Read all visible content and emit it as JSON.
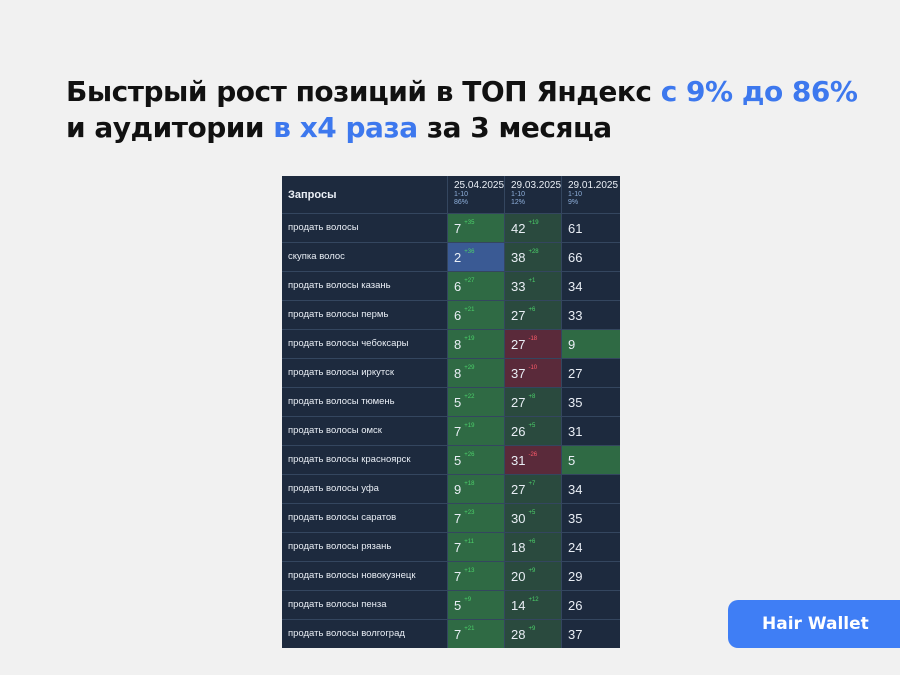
{
  "header": {
    "title": {
      "line1": "Быстрый рост позиций в ТОП Яндекс",
      "line1_accent": "с 9% до 86%",
      "line2": "и аудитории",
      "line2_accent": "в x4 раза",
      "line2_end": "за 3 месяца"
    }
  },
  "table": {
    "columns": [
      {
        "label": "Запросы"
      },
      {
        "label": "25.04.2025",
        "range": "1-10",
        "share": "86%"
      },
      {
        "label": "29.03.2025",
        "range": "1-10",
        "share": "12%"
      },
      {
        "label": "29.01.2025",
        "range": "1-10",
        "share": "9%"
      }
    ],
    "rows": [
      {
        "query": "продать волосы",
        "cells": [
          {
            "value": 7,
            "delta": "+35"
          },
          {
            "value": 42,
            "delta": "+19"
          },
          {
            "value": 61
          }
        ]
      },
      {
        "query": "скупка волос",
        "cells": [
          {
            "value": 2,
            "delta": "+36"
          },
          {
            "value": 38,
            "delta": "+28"
          },
          {
            "value": 66
          }
        ]
      },
      {
        "query": "продать волосы казань",
        "cells": [
          {
            "value": 6,
            "delta": "+27"
          },
          {
            "value": 33,
            "delta": "+1"
          },
          {
            "value": 34
          }
        ]
      },
      {
        "query": "продать волосы пермь",
        "cells": [
          {
            "value": 6,
            "delta": "+21"
          },
          {
            "value": 27,
            "delta": "+6"
          },
          {
            "value": 33
          }
        ]
      },
      {
        "query": "продать волосы чебоксары",
        "cells": [
          {
            "value": 8,
            "delta": "+19"
          },
          {
            "value": 27,
            "delta": "-18"
          },
          {
            "value": 9
          }
        ]
      },
      {
        "query": "продать волосы иркутск",
        "cells": [
          {
            "value": 8,
            "delta": "+29"
          },
          {
            "value": 37,
            "delta": "-10"
          },
          {
            "value": 27
          }
        ]
      },
      {
        "query": "продать волосы тюмень",
        "cells": [
          {
            "value": 5,
            "delta": "+22"
          },
          {
            "value": 27,
            "delta": "+8"
          },
          {
            "value": 35
          }
        ]
      },
      {
        "query": "продать волосы омск",
        "cells": [
          {
            "value": 7,
            "delta": "+19"
          },
          {
            "value": 26,
            "delta": "+5"
          },
          {
            "value": 31
          }
        ]
      },
      {
        "query": "продать волосы красноярск",
        "cells": [
          {
            "value": 5,
            "delta": "+26"
          },
          {
            "value": 31,
            "delta": "-26"
          },
          {
            "value": 5
          }
        ]
      },
      {
        "query": "продать волосы уфа",
        "cells": [
          {
            "value": 9,
            "delta": "+18"
          },
          {
            "value": 27,
            "delta": "+7"
          },
          {
            "value": 34
          }
        ]
      },
      {
        "query": "продать волосы саратов",
        "cells": [
          {
            "value": 7,
            "delta": "+23"
          },
          {
            "value": 30,
            "delta": "+5"
          },
          {
            "value": 35
          }
        ]
      },
      {
        "query": "продать волосы рязань",
        "cells": [
          {
            "value": 7,
            "delta": "+11"
          },
          {
            "value": 18,
            "delta": "+6"
          },
          {
            "value": 24
          }
        ]
      },
      {
        "query": "продать волосы новокузнецк",
        "cells": [
          {
            "value": 7,
            "delta": "+13"
          },
          {
            "value": 20,
            "delta": "+9"
          },
          {
            "value": 29
          }
        ]
      },
      {
        "query": "продать волосы пенза",
        "cells": [
          {
            "value": 5,
            "delta": "+9"
          },
          {
            "value": 14,
            "delta": "+12"
          },
          {
            "value": 26
          }
        ]
      },
      {
        "query": "продать волосы волгоград",
        "cells": [
          {
            "value": 7,
            "delta": "+21"
          },
          {
            "value": 28,
            "delta": "+9"
          },
          {
            "value": 37
          }
        ]
      }
    ]
  },
  "button": {
    "label": "Hair Wallet"
  }
}
